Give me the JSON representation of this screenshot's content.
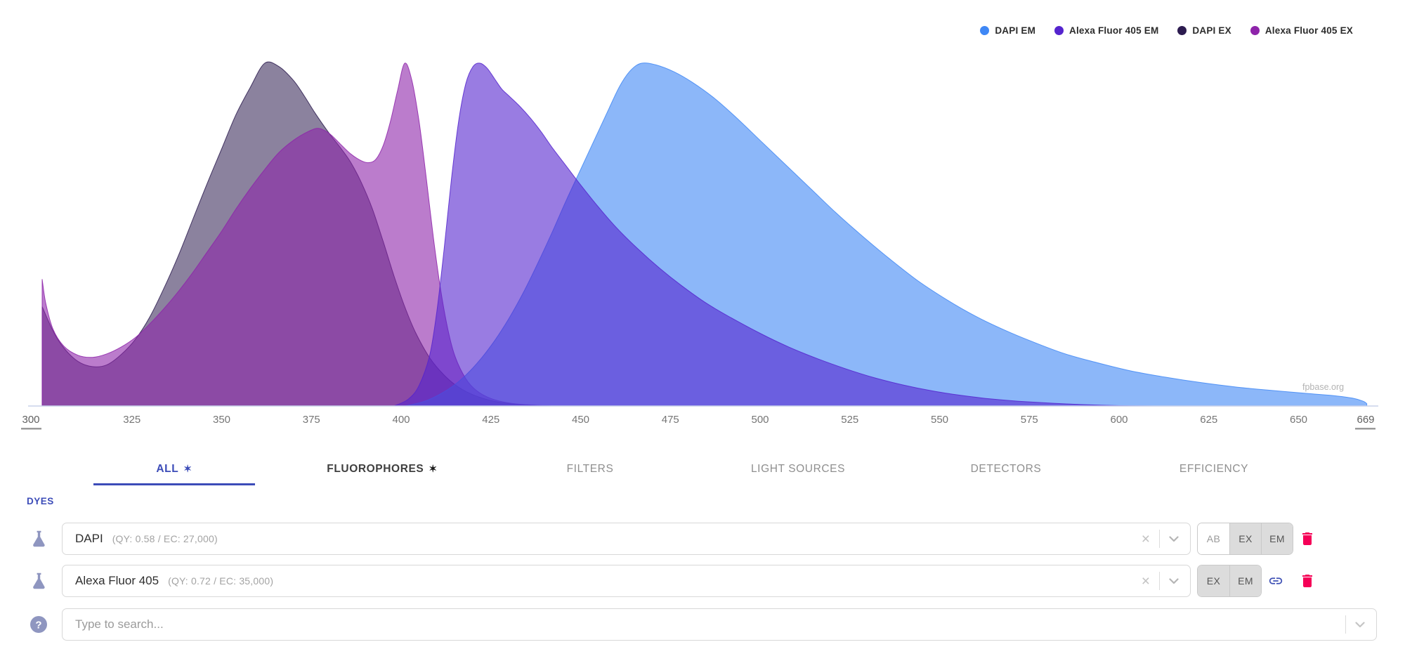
{
  "chart_data": {
    "type": "area",
    "xlim": [
      300,
      669
    ],
    "ylim": [
      0,
      1
    ],
    "x_ticks": [
      325,
      350,
      375,
      400,
      425,
      450,
      475,
      500,
      525,
      550,
      575,
      600,
      625,
      650
    ],
    "x_range_handles": {
      "min": "300",
      "max": "669"
    },
    "watermark": "fpbase.org",
    "grid": false,
    "legend_position": "top-right",
    "series": [
      {
        "name": "DAPI EM",
        "color": "#3F87F5",
        "fill_opacity": 0.6,
        "z": 3,
        "points": [
          [
            401,
            0
          ],
          [
            406,
            0.012
          ],
          [
            410,
            0.03
          ],
          [
            414,
            0.055
          ],
          [
            418,
            0.09
          ],
          [
            422,
            0.135
          ],
          [
            426,
            0.19
          ],
          [
            430,
            0.255
          ],
          [
            434,
            0.33
          ],
          [
            438,
            0.415
          ],
          [
            442,
            0.505
          ],
          [
            446,
            0.6
          ],
          [
            450,
            0.69
          ],
          [
            454,
            0.78
          ],
          [
            458,
            0.87
          ],
          [
            461,
            0.935
          ],
          [
            464,
            0.98
          ],
          [
            467,
            1.0
          ],
          [
            471,
            0.995
          ],
          [
            476,
            0.975
          ],
          [
            481,
            0.945
          ],
          [
            487,
            0.9
          ],
          [
            493,
            0.845
          ],
          [
            500,
            0.775
          ],
          [
            507,
            0.705
          ],
          [
            514,
            0.635
          ],
          [
            521,
            0.565
          ],
          [
            528,
            0.5
          ],
          [
            536,
            0.43
          ],
          [
            544,
            0.365
          ],
          [
            552,
            0.31
          ],
          [
            560,
            0.262
          ],
          [
            568,
            0.222
          ],
          [
            576,
            0.187
          ],
          [
            585,
            0.152
          ],
          [
            594,
            0.126
          ],
          [
            603,
            0.103
          ],
          [
            613,
            0.084
          ],
          [
            623,
            0.068
          ],
          [
            633,
            0.055
          ],
          [
            643,
            0.045
          ],
          [
            653,
            0.036
          ],
          [
            660,
            0.03
          ],
          [
            665,
            0.023
          ],
          [
            668,
            0.014
          ],
          [
            669,
            0.007
          ]
        ]
      },
      {
        "name": "Alexa Fluor 405 EM",
        "color": "#5524CE",
        "fill_opacity": 0.6,
        "z": 4,
        "points": [
          [
            398,
            0
          ],
          [
            402,
            0.02
          ],
          [
            405,
            0.06
          ],
          [
            408,
            0.15
          ],
          [
            410,
            0.28
          ],
          [
            412,
            0.46
          ],
          [
            414,
            0.66
          ],
          [
            416,
            0.83
          ],
          [
            418,
            0.94
          ],
          [
            420,
            0.99
          ],
          [
            422,
            1.0
          ],
          [
            424,
            0.985
          ],
          [
            426,
            0.955
          ],
          [
            428,
            0.925
          ],
          [
            430,
            0.905
          ],
          [
            433,
            0.875
          ],
          [
            436,
            0.84
          ],
          [
            439,
            0.8
          ],
          [
            442,
            0.755
          ],
          [
            446,
            0.7
          ],
          [
            450,
            0.645
          ],
          [
            455,
            0.58
          ],
          [
            460,
            0.52
          ],
          [
            466,
            0.458
          ],
          [
            472,
            0.402
          ],
          [
            478,
            0.352
          ],
          [
            485,
            0.3
          ],
          [
            492,
            0.257
          ],
          [
            500,
            0.212
          ],
          [
            508,
            0.172
          ],
          [
            516,
            0.138
          ],
          [
            524,
            0.108
          ],
          [
            532,
            0.082
          ],
          [
            540,
            0.061
          ],
          [
            548,
            0.044
          ],
          [
            556,
            0.031
          ],
          [
            564,
            0.021
          ],
          [
            572,
            0.014
          ],
          [
            580,
            0.009
          ],
          [
            590,
            0.004
          ],
          [
            600,
            0.001
          ],
          [
            610,
            0
          ]
        ]
      },
      {
        "name": "DAPI EX",
        "color": "#2C1B4F",
        "fill_opacity": 0.55,
        "z": 1,
        "points": [
          [
            300,
            0.29
          ],
          [
            303,
            0.22
          ],
          [
            306,
            0.17
          ],
          [
            310,
            0.13
          ],
          [
            314,
            0.115
          ],
          [
            318,
            0.12
          ],
          [
            322,
            0.15
          ],
          [
            326,
            0.195
          ],
          [
            330,
            0.26
          ],
          [
            334,
            0.345
          ],
          [
            338,
            0.44
          ],
          [
            342,
            0.545
          ],
          [
            346,
            0.65
          ],
          [
            350,
            0.75
          ],
          [
            354,
            0.85
          ],
          [
            358,
            0.93
          ],
          [
            362,
            1.0
          ],
          [
            366,
            0.99
          ],
          [
            370,
            0.95
          ],
          [
            373,
            0.905
          ],
          [
            376,
            0.855
          ],
          [
            380,
            0.795
          ],
          [
            383,
            0.755
          ],
          [
            386,
            0.71
          ],
          [
            389,
            0.65
          ],
          [
            392,
            0.575
          ],
          [
            395,
            0.48
          ],
          [
            398,
            0.38
          ],
          [
            401,
            0.29
          ],
          [
            404,
            0.215
          ],
          [
            408,
            0.14
          ],
          [
            412,
            0.09
          ],
          [
            416,
            0.055
          ],
          [
            420,
            0.033
          ],
          [
            425,
            0.016
          ],
          [
            430,
            0.007
          ],
          [
            436,
            0.002
          ],
          [
            442,
            0
          ]
        ]
      },
      {
        "name": "Alexa Fluor 405 EX",
        "color": "#8E24AA",
        "fill_opacity": 0.6,
        "z": 2,
        "points": [
          [
            300,
            0.37
          ],
          [
            301,
            0.3
          ],
          [
            303,
            0.225
          ],
          [
            306,
            0.175
          ],
          [
            310,
            0.148
          ],
          [
            314,
            0.142
          ],
          [
            318,
            0.152
          ],
          [
            322,
            0.172
          ],
          [
            326,
            0.2
          ],
          [
            330,
            0.24
          ],
          [
            334,
            0.285
          ],
          [
            338,
            0.335
          ],
          [
            342,
            0.39
          ],
          [
            346,
            0.45
          ],
          [
            350,
            0.51
          ],
          [
            354,
            0.575
          ],
          [
            358,
            0.635
          ],
          [
            362,
            0.69
          ],
          [
            366,
            0.74
          ],
          [
            370,
            0.775
          ],
          [
            374,
            0.8
          ],
          [
            377,
            0.81
          ],
          [
            380,
            0.795
          ],
          [
            383,
            0.765
          ],
          [
            386,
            0.735
          ],
          [
            389,
            0.715
          ],
          [
            391,
            0.71
          ],
          [
            393,
            0.72
          ],
          [
            395,
            0.76
          ],
          [
            397,
            0.83
          ],
          [
            399,
            0.92
          ],
          [
            401,
            1.0
          ],
          [
            403,
            0.95
          ],
          [
            405,
            0.83
          ],
          [
            407,
            0.665
          ],
          [
            409,
            0.49
          ],
          [
            411,
            0.34
          ],
          [
            413,
            0.225
          ],
          [
            415,
            0.145
          ],
          [
            418,
            0.08
          ],
          [
            421,
            0.045
          ],
          [
            425,
            0.022
          ],
          [
            430,
            0.009
          ],
          [
            436,
            0.003
          ],
          [
            442,
            0
          ]
        ]
      }
    ]
  },
  "tabs": [
    {
      "label": "ALL",
      "star": "✶",
      "active": true
    },
    {
      "label": "FLUOROPHORES",
      "star": "✶",
      "active": false
    },
    {
      "label": "FILTERS",
      "star": "",
      "active": false
    },
    {
      "label": "LIGHT SOURCES",
      "star": "",
      "active": false
    },
    {
      "label": "DETECTORS",
      "star": "",
      "active": false
    },
    {
      "label": "EFFICIENCY",
      "star": "",
      "active": false
    }
  ],
  "section_label": "DYES",
  "rows": [
    {
      "name": "DAPI",
      "meta": "(QY: 0.58 / EC: 27,000)",
      "modes": [
        {
          "label": "AB",
          "active": false
        },
        {
          "label": "EX",
          "active": true
        },
        {
          "label": "EM",
          "active": true
        }
      ]
    },
    {
      "name": "Alexa Fluor 405",
      "meta": "(QY: 0.72 / EC: 35,000)",
      "modes": [
        {
          "label": "EX",
          "active": true
        },
        {
          "label": "EM",
          "active": true
        }
      ]
    }
  ],
  "search": {
    "placeholder": "Type to search..."
  },
  "icons": {
    "clear": "×",
    "help": "?"
  },
  "colors": {
    "accent": "#3C4CB8",
    "trash": "#F50057",
    "link": "#3F51B5",
    "row_icon": "#8F96C0",
    "axis_line": "#c9d2ea",
    "active_btn_bg": "#dcdcdc"
  }
}
